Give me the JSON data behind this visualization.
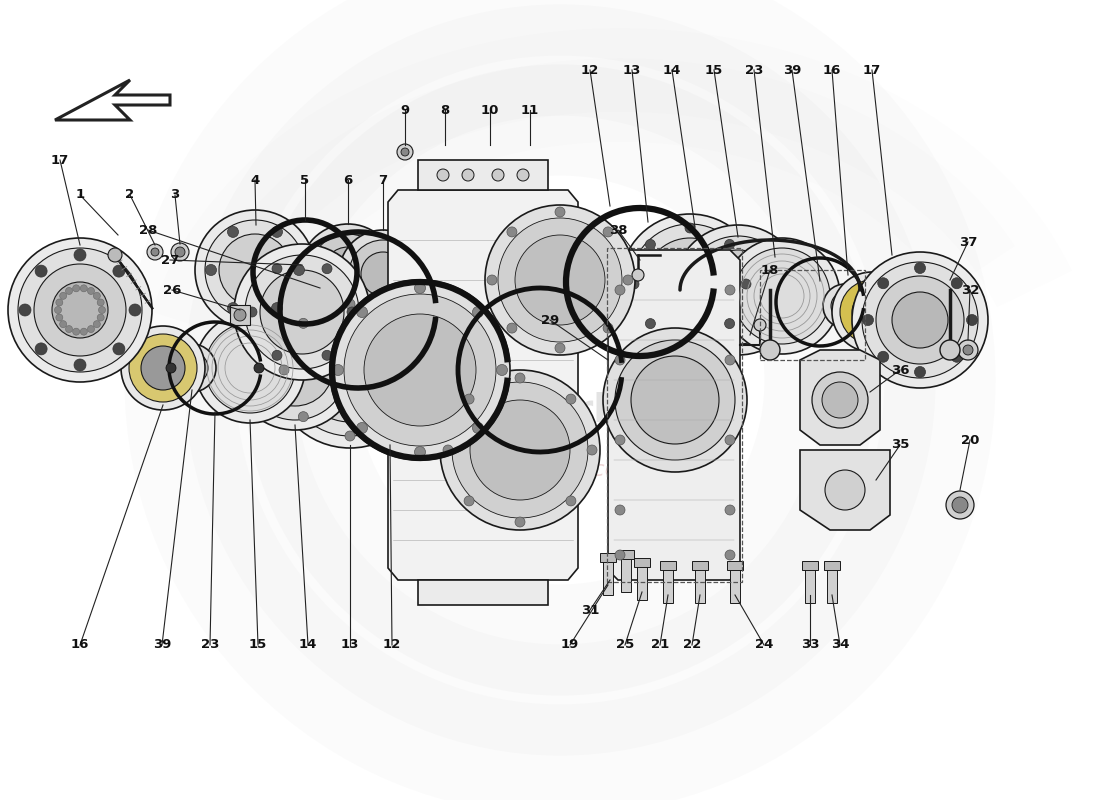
{
  "bg_color": "#ffffff",
  "line_color": "#1a1a1a",
  "fig_width": 11.0,
  "fig_height": 8.0,
  "watermark1": "euromotorhomes",
  "watermark2": "a passion for excellence",
  "wm_logo": "es"
}
